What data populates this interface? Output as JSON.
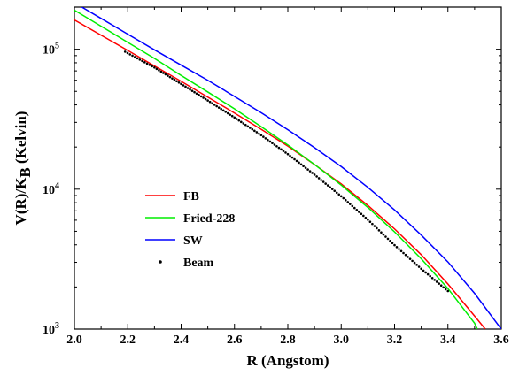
{
  "chart_data": {
    "type": "line",
    "xlabel": "R (Angstom)",
    "ylabel_main": "V(R)/K",
    "ylabel_sub": "B",
    "ylabel_tail": " (Kelvin)",
    "xlim": [
      2.0,
      3.6
    ],
    "ylim": [
      1000,
      200000
    ],
    "yscale": "log",
    "grid": false,
    "legend_position": "center-left",
    "x_ticks": [
      "2.0",
      "2.2",
      "2.4",
      "2.6",
      "2.8",
      "3.0",
      "3.2",
      "3.4",
      "3.6"
    ],
    "y_ticks": [
      {
        "base": "10",
        "exp": "3",
        "value": 1000
      },
      {
        "base": "10",
        "exp": "4",
        "value": 10000
      },
      {
        "base": "10",
        "exp": "5",
        "value": 100000
      }
    ],
    "series": [
      {
        "name": "FB",
        "color": "#ff0000",
        "style": "line",
        "x": [
          2.0,
          2.1,
          2.2,
          2.3,
          2.4,
          2.5,
          2.6,
          2.7,
          2.8,
          2.9,
          3.0,
          3.1,
          3.2,
          3.3,
          3.4,
          3.5,
          3.54
        ],
        "y": [
          162000,
          126000,
          98000,
          76000,
          59000,
          45500,
          35000,
          26800,
          20300,
          15000,
          10900,
          7650,
          5200,
          3400,
          2100,
          1240,
          1000
        ]
      },
      {
        "name": "Fried-228",
        "color": "#00ee00",
        "style": "line",
        "x": [
          2.0,
          2.1,
          2.2,
          2.3,
          2.4,
          2.5,
          2.6,
          2.7,
          2.8,
          2.9,
          3.0,
          3.1,
          3.2,
          3.3,
          3.4,
          3.5,
          3.51
        ],
        "y": [
          190000,
          146000,
          112000,
          86000,
          65000,
          49500,
          37500,
          28000,
          20700,
          15000,
          10700,
          7400,
          4950,
          3180,
          1950,
          1100,
          1000
        ]
      },
      {
        "name": "SW",
        "color": "#0000ff",
        "style": "line",
        "x": [
          2.0,
          2.1,
          2.2,
          2.3,
          2.4,
          2.5,
          2.6,
          2.7,
          2.8,
          2.9,
          3.0,
          3.1,
          3.2,
          3.3,
          3.4,
          3.5,
          3.6
        ],
        "y": [
          215000,
          166000,
          128000,
          99000,
          77000,
          60000,
          46000,
          35200,
          26600,
          19800,
          14500,
          10300,
          7100,
          4700,
          3020,
          1800,
          1000
        ]
      },
      {
        "name": "Beam",
        "color": "#000000",
        "style": "dots",
        "x": [
          2.19,
          2.3,
          2.4,
          2.5,
          2.6,
          2.7,
          2.8,
          2.9,
          3.0,
          3.1,
          3.2,
          3.3,
          3.4
        ],
        "y": [
          96000,
          74000,
          56500,
          43000,
          32500,
          24300,
          17800,
          12700,
          8900,
          6050,
          3980,
          2700,
          1870
        ]
      }
    ]
  }
}
